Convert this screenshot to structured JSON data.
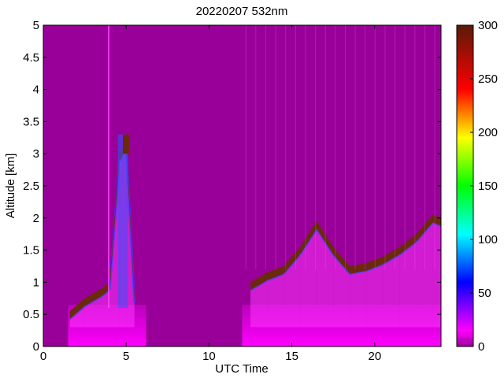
{
  "chart_data": {
    "type": "heatmap",
    "title": "20220207 532nm",
    "xlabel": "UTC Time",
    "ylabel": "Altitude [km]",
    "xlim": [
      0,
      24
    ],
    "ylim": [
      0,
      5
    ],
    "x_ticks": [
      0,
      5,
      10,
      15,
      20
    ],
    "x_tick_labels": [
      "0",
      "5",
      "10",
      "15",
      "20"
    ],
    "y_ticks": [
      0,
      0.5,
      1,
      1.5,
      2,
      2.5,
      3,
      3.5,
      4,
      4.5,
      5
    ],
    "y_tick_labels": [
      "0",
      "0.5",
      "1",
      "1.5",
      "2",
      "2.5",
      "3",
      "3.5",
      "4",
      "4.5",
      "5"
    ],
    "colorbar": {
      "min": 0,
      "max": 300,
      "ticks": [
        0,
        50,
        100,
        150,
        200,
        250,
        300
      ],
      "tick_labels": [
        "0",
        "50",
        "100",
        "150",
        "200",
        "250",
        "300"
      ],
      "colormap": "jet"
    },
    "background_color": "#990099",
    "no_data_color": "#ffffff",
    "near_surface_layer_color": "#ff00ff",
    "cloud_color": "#6b2a0d",
    "data_gaps_utc": [
      [
        0,
        1.5
      ],
      [
        6.2,
        12.0
      ]
    ],
    "cloud_top_km_by_hour": {
      "hours": [
        1.6,
        2.5,
        3.5,
        4.0,
        4.6,
        5.0,
        5.5,
        12.5,
        13.5,
        14.5,
        15.5,
        16.5,
        17.5,
        18.5,
        19.5,
        20.5,
        21.5,
        22.5,
        23.5,
        24.0
      ],
      "top_km": [
        0.55,
        0.75,
        0.9,
        1.0,
        3.0,
        3.2,
        0.8,
        1.0,
        1.15,
        1.25,
        1.55,
        1.95,
        1.55,
        1.25,
        1.3,
        1.4,
        1.55,
        1.75,
        2.05,
        2.0
      ]
    }
  }
}
